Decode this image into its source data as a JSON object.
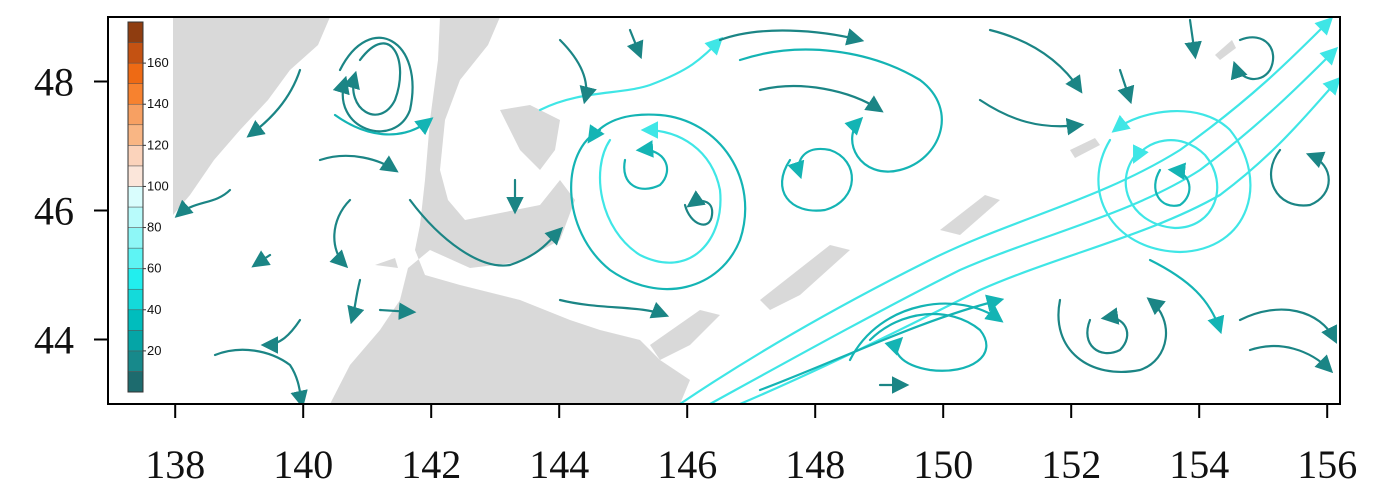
{
  "chart_data": {
    "type": "streamplot",
    "xlim": [
      136.95,
      156.2
    ],
    "ylim": [
      43.0,
      49.0
    ],
    "xticks": [
      138,
      140,
      142,
      144,
      146,
      148,
      150,
      152,
      154,
      156
    ],
    "yticks": [
      44,
      46,
      48
    ],
    "colorbar": {
      "levels": [
        0,
        10,
        20,
        30,
        40,
        50,
        60,
        70,
        80,
        90,
        100,
        110,
        120,
        130,
        140,
        150,
        160,
        170,
        180
      ],
      "colors": [
        "#1d6b6e",
        "#17898b",
        "#05a5a6",
        "#00bdbd",
        "#14dada",
        "#22eeee",
        "#5ef4f4",
        "#8ef7f7",
        "#b8fbfb",
        "#d9fdfd",
        "#fbe6da",
        "#fbd3bb",
        "#f9b684",
        "#f7a062",
        "#f7822f",
        "#ee6a14",
        "#c45212",
        "#8f3d10"
      ],
      "ticks": [
        20,
        40,
        60,
        80,
        100,
        120,
        140,
        160
      ]
    }
  }
}
